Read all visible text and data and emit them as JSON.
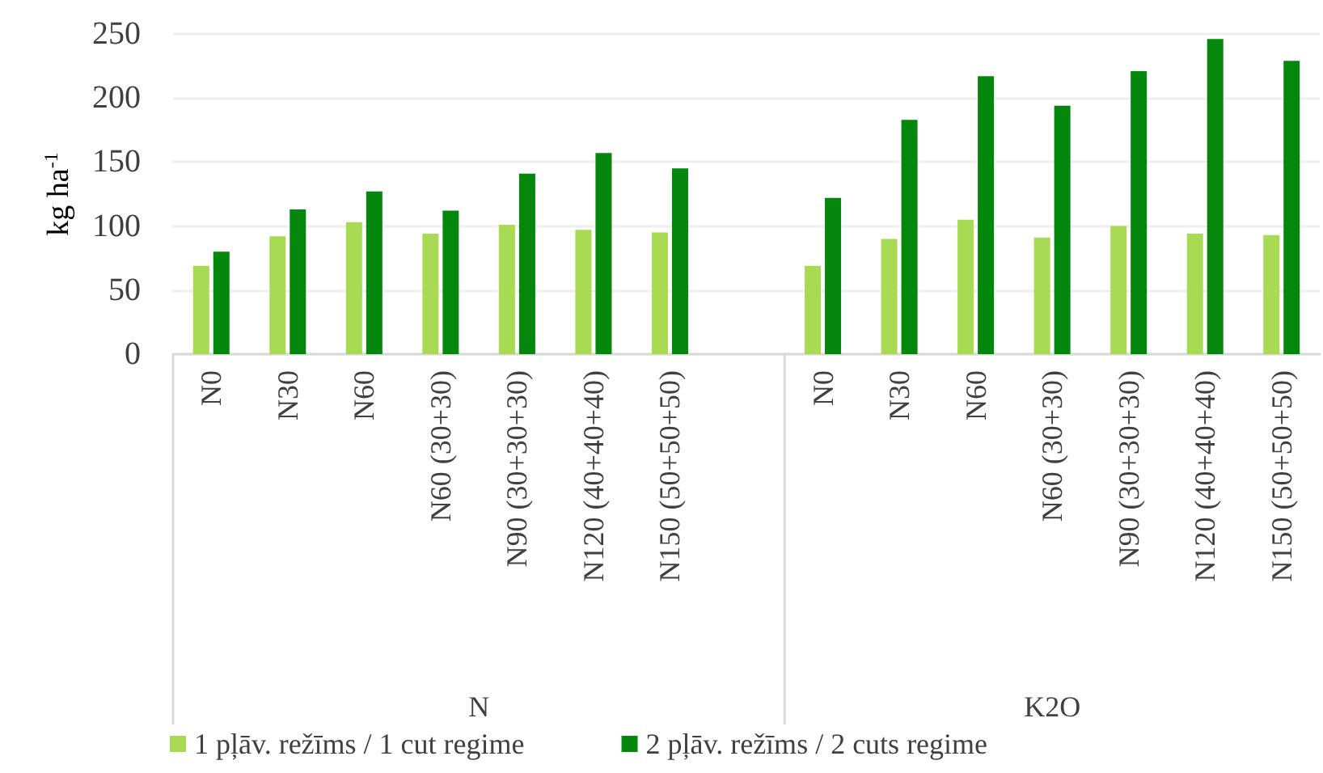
{
  "chart_data": {
    "type": "bar",
    "categories": [
      "N0",
      "N30",
      "N60",
      "N60 (30+30)",
      "N90 (30+30+30)",
      "N120 (40+40+40)",
      "N150 (50+50+50)",
      null,
      "N0",
      "N30",
      "N60",
      "N60 (30+30)",
      "N90 (30+30+30)",
      "N120 (40+40+40)",
      "N150 (50+50+50)"
    ],
    "series": [
      {
        "name": "1 pļāv. režīms / 1 cut regime",
        "color": "#a9da53",
        "values": [
          69,
          92,
          103,
          94,
          101,
          97,
          95,
          null,
          69,
          90,
          105,
          91,
          100,
          94,
          93
        ]
      },
      {
        "name": "2 pļāv. režīms / 2 cuts regime",
        "color": "#05870d",
        "values": [
          80,
          113,
          127,
          112,
          141,
          157,
          145,
          null,
          122,
          183,
          217,
          194,
          221,
          246,
          229
        ]
      }
    ],
    "ylabel": "kg ha$^{-1}$",
    "annotations": [
      "N",
      "K2O"
    ],
    "ylim": [
      0,
      250
    ],
    "yticks": [
      0,
      50,
      100,
      150,
      200,
      250
    ],
    "grid": "y",
    "legend": "bottom left"
  }
}
